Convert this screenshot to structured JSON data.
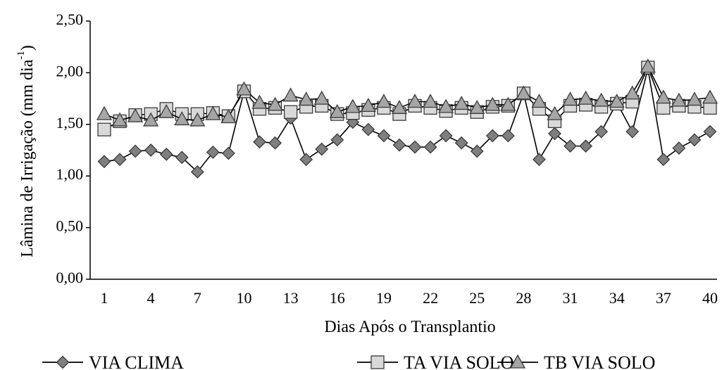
{
  "chart_data": {
    "type": "line",
    "title": "",
    "xlabel": "Dias Após o Transplantio",
    "ylabel_main": "Lâmina de Irrigação (mm dia",
    "ylabel_sup": "-1",
    "ylabel_close": ")",
    "ylim": [
      0,
      2.5
    ],
    "yticks": [
      "0,00",
      "0,50",
      "1,00",
      "1,50",
      "2,00",
      "2,50"
    ],
    "ytick_values": [
      0,
      0.5,
      1.0,
      1.5,
      2.0,
      2.5
    ],
    "xlim": [
      1,
      40
    ],
    "xticks": [
      "1",
      "4",
      "7",
      "10",
      "13",
      "16",
      "19",
      "22",
      "25",
      "28",
      "31",
      "34",
      "37",
      "40"
    ],
    "xtick_values": [
      1,
      4,
      7,
      10,
      13,
      16,
      19,
      22,
      25,
      28,
      31,
      34,
      37,
      40
    ],
    "grid": false,
    "legend_position": "bottom",
    "x": [
      1,
      2,
      3,
      4,
      5,
      6,
      7,
      8,
      9,
      10,
      11,
      12,
      13,
      14,
      15,
      16,
      17,
      18,
      19,
      20,
      21,
      22,
      23,
      24,
      25,
      26,
      27,
      28,
      29,
      30,
      31,
      32,
      33,
      34,
      35,
      36,
      37,
      38,
      39,
      40
    ],
    "series": [
      {
        "name": "VIA CLIMA",
        "marker": "diamond",
        "color": "#7f7f7f",
        "values": [
          1.14,
          1.16,
          1.24,
          1.25,
          1.21,
          1.18,
          1.04,
          1.23,
          1.22,
          1.82,
          1.33,
          1.32,
          1.56,
          1.16,
          1.26,
          1.35,
          1.52,
          1.45,
          1.39,
          1.3,
          1.28,
          1.28,
          1.39,
          1.32,
          1.24,
          1.39,
          1.39,
          1.8,
          1.16,
          1.41,
          1.29,
          1.29,
          1.43,
          1.71,
          1.43,
          2.04,
          1.16,
          1.27,
          1.35,
          1.43
        ]
      },
      {
        "name": "TA VIA SOLO",
        "marker": "square",
        "color": "#d9d9d9",
        "values": [
          1.45,
          1.53,
          1.59,
          1.6,
          1.65,
          1.6,
          1.6,
          1.61,
          1.58,
          1.82,
          1.65,
          1.66,
          1.62,
          1.67,
          1.68,
          1.6,
          1.61,
          1.64,
          1.66,
          1.6,
          1.68,
          1.66,
          1.63,
          1.66,
          1.62,
          1.67,
          1.68,
          1.8,
          1.65,
          1.53,
          1.68,
          1.69,
          1.67,
          1.7,
          1.72,
          2.05,
          1.66,
          1.68,
          1.67,
          1.66
        ]
      },
      {
        "name": "TB VIA SOLO",
        "marker": "triangle",
        "color": "#a6a6a6",
        "values": [
          1.6,
          1.54,
          1.58,
          1.54,
          1.62,
          1.55,
          1.54,
          1.6,
          1.57,
          1.84,
          1.71,
          1.69,
          1.78,
          1.74,
          1.75,
          1.62,
          1.67,
          1.68,
          1.72,
          1.66,
          1.72,
          1.72,
          1.67,
          1.7,
          1.66,
          1.69,
          1.69,
          1.8,
          1.72,
          1.6,
          1.74,
          1.75,
          1.73,
          1.72,
          1.8,
          2.06,
          1.76,
          1.73,
          1.74,
          1.76
        ]
      }
    ]
  }
}
